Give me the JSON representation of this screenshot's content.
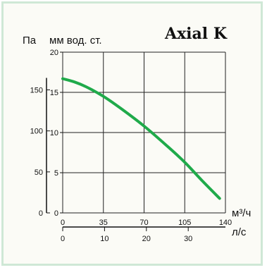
{
  "chart_data": {
    "type": "line",
    "title": "Axial K",
    "y_left_label": "Па",
    "y_right_label": "мм вод. ст.",
    "x_bottom_label": "м³/ч",
    "x_bottom2_label": "л/с",
    "x_ticks": [
      "0",
      "35",
      "70",
      "105",
      "140"
    ],
    "x2_ticks": [
      "0",
      "10",
      "20",
      "30"
    ],
    "y_left_ticks": [
      "0",
      "50",
      "100",
      "150"
    ],
    "y_right_ticks": [
      "0",
      "5",
      "10",
      "15",
      "20"
    ],
    "xlim": [
      0,
      140
    ],
    "x2lim": [
      0,
      38.89
    ],
    "ylim": [
      0,
      20
    ],
    "ylim_pa": [
      0,
      196
    ],
    "grid": true,
    "series": [
      {
        "color": "#1faa4a",
        "x": [
          0,
          10,
          20,
          35,
          50,
          70,
          90,
          105,
          120,
          135
        ],
        "y": [
          16.7,
          16.3,
          15.7,
          14.5,
          13.0,
          10.8,
          8.3,
          6.3,
          4.0,
          1.8
        ]
      }
    ]
  }
}
